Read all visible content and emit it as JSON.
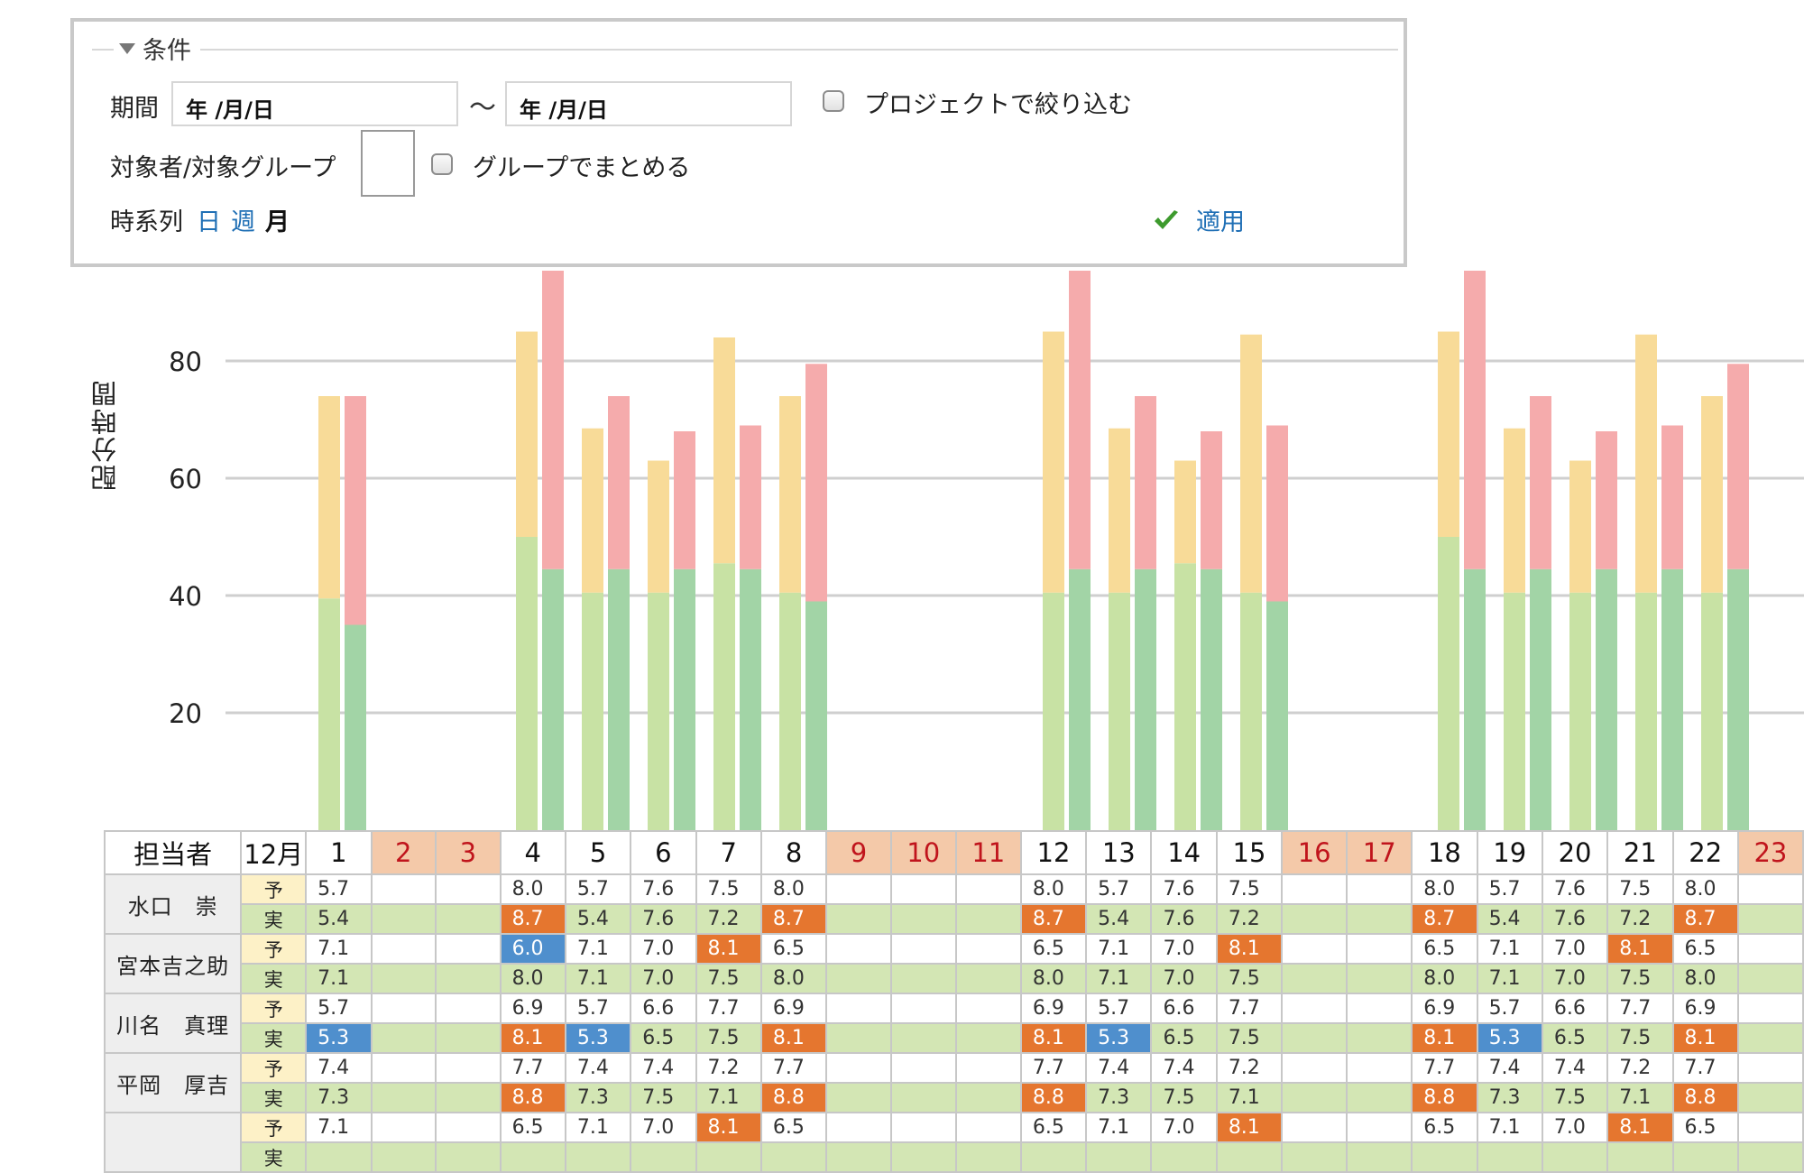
{
  "conditions": {
    "legend": "条件",
    "period_label": "期間",
    "start_placeholder": "年 /月/日",
    "tilde": "〜",
    "end_placeholder": "年 /月/日",
    "project_filter_label": "プロジェクトで絞り込む",
    "target_label": "対象者/対象グループ",
    "group_label": "グループでまとめる",
    "series_label": "時系列",
    "series_day": "日",
    "series_week": "週",
    "series_month": "月",
    "apply_label": "適用",
    "accent_color": "#1f6fb5",
    "apply_icon": "green-checkmark-icon"
  },
  "chart_data": {
    "type": "bar",
    "ylabel": "配分時間",
    "yticks": [
      20,
      40,
      60,
      80
    ],
    "ylim": [
      0,
      95
    ],
    "stacked": true,
    "grid": true,
    "categories": [
      "1",
      "2",
      "3",
      "4",
      "5",
      "6",
      "7",
      "8",
      "9",
      "10",
      "11",
      "12",
      "13",
      "14",
      "15",
      "16",
      "17",
      "18",
      "19",
      "20",
      "21",
      "22",
      "23"
    ],
    "series": [
      {
        "color_bottom": "#c8e2a4",
        "color_top": "#f8db98",
        "bottom": [
          39.5,
          null,
          null,
          50,
          40.5,
          40.5,
          45.5,
          40.5,
          null,
          null,
          null,
          40.5,
          40.5,
          45.5,
          40.5,
          null,
          null,
          50,
          40.5,
          40.5,
          40.5,
          40.5,
          null
        ],
        "top": [
          34.5,
          null,
          null,
          35,
          28,
          22.5,
          38.5,
          33.5,
          null,
          null,
          null,
          44.5,
          28,
          17.5,
          44,
          null,
          null,
          35,
          28,
          22.5,
          44,
          33.5,
          null
        ]
      },
      {
        "color_bottom": "#a2d4a6",
        "color_top": "#f5abac",
        "bottom": [
          35,
          null,
          null,
          44.5,
          44.5,
          44.5,
          44.5,
          39,
          null,
          null,
          null,
          44.5,
          44.5,
          44.5,
          39,
          null,
          null,
          44.5,
          44.5,
          44.5,
          44.5,
          44.5,
          null
        ],
        "top": [
          39,
          null,
          null,
          52.5,
          29.5,
          23.5,
          24.5,
          40.5,
          null,
          null,
          null,
          52.5,
          29.5,
          23.5,
          30,
          null,
          null,
          52.5,
          29.5,
          23.5,
          24.5,
          35,
          null
        ]
      }
    ]
  },
  "table": {
    "header_member": "担当者",
    "header_month": "12月",
    "days": [
      "1",
      "2",
      "3",
      "4",
      "5",
      "6",
      "7",
      "8",
      "9",
      "10",
      "11",
      "12",
      "13",
      "14",
      "15",
      "16",
      "17",
      "18",
      "19",
      "20",
      "21",
      "22",
      "23"
    ],
    "holidays": [
      "2",
      "3",
      "9",
      "10",
      "11",
      "16",
      "17",
      "23"
    ],
    "plan_label": "予",
    "actual_label": "実",
    "high_color": "#e5762f",
    "low_color": "#4f8fcd",
    "members": [
      {
        "name": "水口　崇",
        "plan": [
          "5.7",
          "",
          "",
          "8.0",
          "5.7",
          "7.6",
          "7.5",
          "8.0",
          "",
          "",
          "",
          "8.0",
          "5.7",
          "7.6",
          "7.5",
          "",
          "",
          "8.0",
          "5.7",
          "7.6",
          "7.5",
          "8.0",
          ""
        ],
        "plan_flags": [
          "",
          "",
          "",
          "",
          "",
          "",
          "",
          "",
          "",
          "",
          "",
          "",
          "",
          "",
          "",
          "",
          "",
          "",
          "",
          "",
          "",
          "",
          ""
        ],
        "actual": [
          "5.4",
          "",
          "",
          "8.7",
          "5.4",
          "7.6",
          "7.2",
          "8.7",
          "",
          "",
          "",
          "8.7",
          "5.4",
          "7.6",
          "7.2",
          "",
          "",
          "8.7",
          "5.4",
          "7.6",
          "7.2",
          "8.7",
          ""
        ],
        "actual_flags": [
          "",
          "",
          "",
          "hi",
          "",
          "",
          "",
          "hi",
          "",
          "",
          "",
          "hi",
          "",
          "",
          "",
          "",
          "",
          "hi",
          "",
          "",
          "",
          "hi",
          ""
        ]
      },
      {
        "name": "宮本吉之助",
        "plan": [
          "7.1",
          "",
          "",
          "6.0",
          "7.1",
          "7.0",
          "8.1",
          "6.5",
          "",
          "",
          "",
          "6.5",
          "7.1",
          "7.0",
          "8.1",
          "",
          "",
          "6.5",
          "7.1",
          "7.0",
          "8.1",
          "6.5",
          ""
        ],
        "plan_flags": [
          "",
          "",
          "",
          "lo",
          "",
          "",
          "hi",
          "",
          "",
          "",
          "",
          "",
          "",
          "",
          "hi",
          "",
          "",
          "",
          "",
          "",
          "hi",
          "",
          ""
        ],
        "actual": [
          "7.1",
          "",
          "",
          "8.0",
          "7.1",
          "7.0",
          "7.5",
          "8.0",
          "",
          "",
          "",
          "8.0",
          "7.1",
          "7.0",
          "7.5",
          "",
          "",
          "8.0",
          "7.1",
          "7.0",
          "7.5",
          "8.0",
          ""
        ],
        "actual_flags": [
          "",
          "",
          "",
          "",
          "",
          "",
          "",
          "",
          "",
          "",
          "",
          "",
          "",
          "",
          "",
          "",
          "",
          "",
          "",
          "",
          "",
          "",
          ""
        ]
      },
      {
        "name": "川名　真理",
        "plan": [
          "5.7",
          "",
          "",
          "6.9",
          "5.7",
          "6.6",
          "7.7",
          "6.9",
          "",
          "",
          "",
          "6.9",
          "5.7",
          "6.6",
          "7.7",
          "",
          "",
          "6.9",
          "5.7",
          "6.6",
          "7.7",
          "6.9",
          ""
        ],
        "plan_flags": [
          "",
          "",
          "",
          "",
          "",
          "",
          "",
          "",
          "",
          "",
          "",
          "",
          "",
          "",
          "",
          "",
          "",
          "",
          "",
          "",
          "",
          "",
          ""
        ],
        "actual": [
          "5.3",
          "",
          "",
          "8.1",
          "5.3",
          "6.5",
          "7.5",
          "8.1",
          "",
          "",
          "",
          "8.1",
          "5.3",
          "6.5",
          "7.5",
          "",
          "",
          "8.1",
          "5.3",
          "6.5",
          "7.5",
          "8.1",
          ""
        ],
        "actual_flags": [
          "lo",
          "",
          "",
          "hi",
          "lo",
          "",
          "",
          "hi",
          "",
          "",
          "",
          "hi",
          "lo",
          "",
          "",
          "",
          "",
          "hi",
          "lo",
          "",
          "",
          "hi",
          ""
        ]
      },
      {
        "name": "平岡　厚吉",
        "plan": [
          "7.4",
          "",
          "",
          "7.7",
          "7.4",
          "7.4",
          "7.2",
          "7.7",
          "",
          "",
          "",
          "7.7",
          "7.4",
          "7.4",
          "7.2",
          "",
          "",
          "7.7",
          "7.4",
          "7.4",
          "7.2",
          "7.7",
          ""
        ],
        "plan_flags": [
          "",
          "",
          "",
          "",
          "",
          "",
          "",
          "",
          "",
          "",
          "",
          "",
          "",
          "",
          "",
          "",
          "",
          "",
          "",
          "",
          "",
          "",
          ""
        ],
        "actual": [
          "7.3",
          "",
          "",
          "8.8",
          "7.3",
          "7.5",
          "7.1",
          "8.8",
          "",
          "",
          "",
          "8.8",
          "7.3",
          "7.5",
          "7.1",
          "",
          "",
          "8.8",
          "7.3",
          "7.5",
          "7.1",
          "8.8",
          ""
        ],
        "actual_flags": [
          "",
          "",
          "",
          "hi",
          "",
          "",
          "",
          "hi",
          "",
          "",
          "",
          "hi",
          "",
          "",
          "",
          "",
          "",
          "hi",
          "",
          "",
          "",
          "hi",
          ""
        ]
      },
      {
        "name": "",
        "plan": [
          "7.1",
          "",
          "",
          "6.5",
          "7.1",
          "7.0",
          "8.1",
          "6.5",
          "",
          "",
          "",
          "6.5",
          "7.1",
          "7.0",
          "8.1",
          "",
          "",
          "6.5",
          "7.1",
          "7.0",
          "8.1",
          "6.5",
          ""
        ],
        "plan_flags": [
          "",
          "",
          "",
          "",
          "",
          "",
          "hi",
          "",
          "",
          "",
          "",
          "",
          "",
          "",
          "hi",
          "",
          "",
          "",
          "",
          "",
          "hi",
          "",
          ""
        ],
        "actual": [],
        "actual_flags": []
      }
    ]
  }
}
